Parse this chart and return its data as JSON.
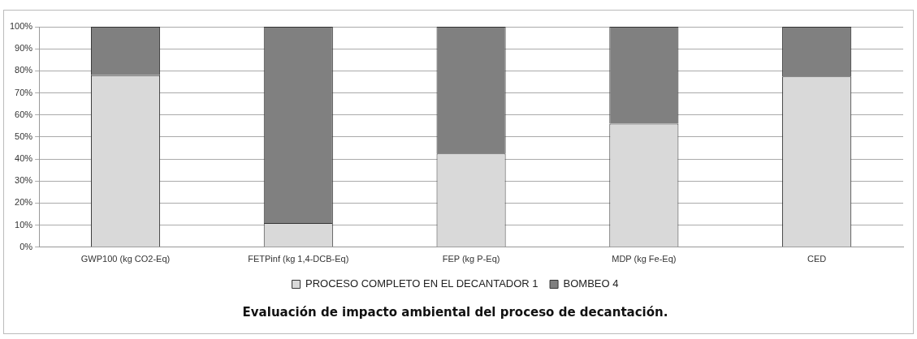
{
  "chart_data": {
    "type": "bar",
    "title": "Evaluación de impacto ambiental del proceso de decantación.",
    "stacked": true,
    "categories": [
      "GWP100 (kg CO2-Eq)",
      "FETPinf (kg 1,4-DCB-Eq)",
      "FEP (kg P-Eq)",
      "MDP (kg Fe-Eq)",
      "CED"
    ],
    "series": [
      {
        "name": "PROCESO COMPLETO EN EL DECANTADOR 1",
        "color": "#d9d9d9",
        "values": [
          78,
          11,
          42.5,
          56,
          77.5
        ]
      },
      {
        "name": "BOMBEO 4",
        "color": "#808080",
        "values": [
          22,
          89,
          57.5,
          44,
          22.5
        ]
      }
    ],
    "ylim": [
      0,
      100
    ],
    "yticks": [
      {
        "value": 0,
        "label": "0%"
      },
      {
        "value": 10,
        "label": "10%"
      },
      {
        "value": 20,
        "label": "20%"
      },
      {
        "value": 30,
        "label": "30%"
      },
      {
        "value": 40,
        "label": "40%"
      },
      {
        "value": 50,
        "label": "50%"
      },
      {
        "value": 60,
        "label": "60%"
      },
      {
        "value": 70,
        "label": "70%"
      },
      {
        "value": 80,
        "label": "80%"
      },
      {
        "value": 90,
        "label": "90%"
      },
      {
        "value": 100,
        "label": "100%"
      }
    ],
    "grid": "y",
    "legend": "bottom"
  }
}
